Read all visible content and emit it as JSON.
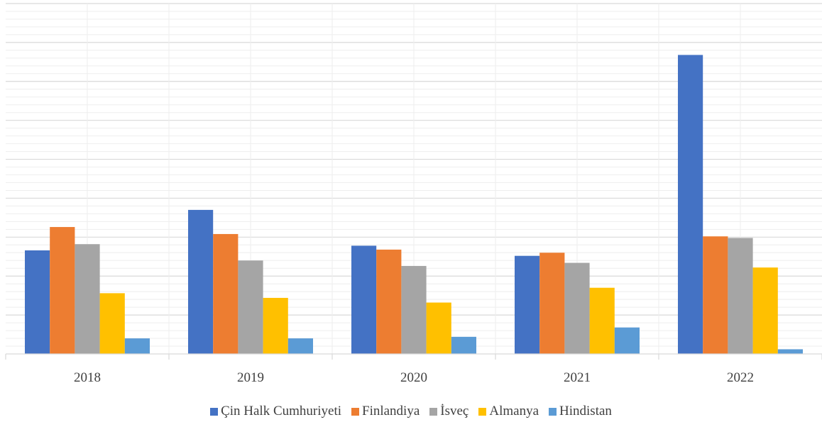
{
  "chart_data": {
    "type": "bar",
    "title": "",
    "xlabel": "",
    "ylabel": "",
    "ylim": [
      0,
      450
    ],
    "grid": true,
    "legend_position": "bottom",
    "categories": [
      "2018",
      "2019",
      "2020",
      "2021",
      "2022"
    ],
    "series": [
      {
        "name": "Çin Halk Cumhuriyeti",
        "color": "#4472C4",
        "values": [
          133,
          185,
          139,
          126,
          384
        ]
      },
      {
        "name": "Finlandiya",
        "color": "#ED7D31",
        "values": [
          163,
          154,
          134,
          130,
          151
        ]
      },
      {
        "name": "İsveç",
        "color": "#A5A5A5",
        "values": [
          141,
          120,
          113,
          117,
          149
        ]
      },
      {
        "name": "Almanya",
        "color": "#FFC000",
        "values": [
          78,
          72,
          66,
          85,
          111
        ]
      },
      {
        "name": "Hindistan",
        "color": "#5B9BD5",
        "values": [
          20,
          20,
          22,
          34,
          6
        ]
      }
    ]
  }
}
